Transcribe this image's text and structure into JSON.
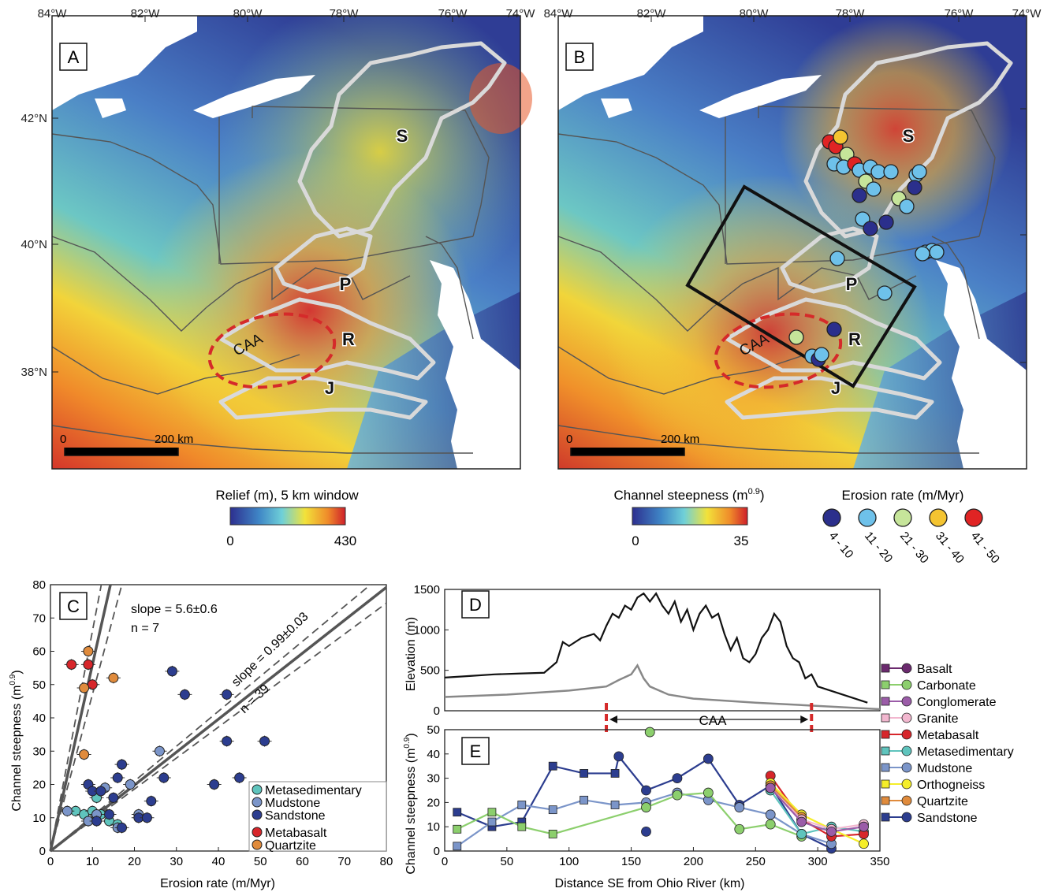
{
  "map_panels": {
    "lon_ticks": [
      "84°W",
      "82°W",
      "80°W",
      "78°W",
      "76°W",
      "74°W"
    ],
    "lat_ticks": [
      "42°N",
      "40°N",
      "38°N"
    ],
    "basin_labels": [
      "S",
      "P",
      "R",
      "J"
    ],
    "caa_label": "CAA",
    "scalebar_zero": "0",
    "scalebar_label": "200 km"
  },
  "panel_a": {
    "letter": "A",
    "colorbar_title": "Relief (m), 5 km window",
    "colorbar_min": "0",
    "colorbar_max": "430"
  },
  "panel_b": {
    "letter": "B",
    "colorbar_title": "Channel steepness (m",
    "colorbar_title_sup": "0.9",
    "colorbar_title_end": ")",
    "colorbar_min": "0",
    "colorbar_max": "35",
    "erosion_legend_title": "Erosion rate (m/Myr)",
    "erosion_classes": [
      {
        "label": "4 - 10",
        "color": "#2b2f8c"
      },
      {
        "label": "11 - 20",
        "color": "#6ec1ea"
      },
      {
        "label": "21 - 30",
        "color": "#c6e59a"
      },
      {
        "label": "31 - 40",
        "color": "#f4c431"
      },
      {
        "label": "41 - 50",
        "color": "#e02424"
      }
    ]
  },
  "panel_c": {
    "letter": "C",
    "xlabel": "Erosion rate (m/Myr)",
    "ylabel_main": "Channel steepness (m",
    "ylabel_sup": "0.9",
    "ylabel_end": ")",
    "xticks": [
      "0",
      "10",
      "20",
      "30",
      "40",
      "50",
      "60",
      "70",
      "80"
    ],
    "yticks": [
      "0",
      "10",
      "20",
      "30",
      "40",
      "50",
      "60",
      "70",
      "80"
    ],
    "fit1_slope": "slope = 5.6±0.6",
    "fit1_n": "n = 7",
    "fit2_slope": "slope = 0.99±0.03",
    "fit2_n": "n = 39",
    "legend": [
      "Metasedimentary",
      "Mudstone",
      "Sandstone",
      "Metabasalt",
      "Quartzite"
    ]
  },
  "panel_d": {
    "letter": "D",
    "ylabel": "Elevation (m)",
    "yticks": [
      "0",
      "500",
      "1000",
      "1500"
    ],
    "caa_label": "CAA"
  },
  "panel_e": {
    "letter": "E",
    "xlabel": "Distance SE from Ohio River (km)",
    "ylabel_main": "Channel steepness (m",
    "ylabel_sup": "0.9",
    "ylabel_end": ")",
    "xticks": [
      "0",
      "50",
      "100",
      "150",
      "200",
      "250",
      "300",
      "350"
    ],
    "yticks": [
      "0",
      "10",
      "20",
      "30",
      "40",
      "50"
    ]
  },
  "lithology_legend": [
    "Basalt",
    "Carbonate",
    "Conglomerate",
    "Granite",
    "Metabasalt",
    "Metasedimentary",
    "Mudstone",
    "Orthogneiss",
    "Quartzite",
    "Sandstone"
  ],
  "colors": {
    "metasedimentary": "#5fc4bd",
    "mudstone": "#7b95c9",
    "sandstone": "#2c3d8f",
    "metabasalt": "#d7262b",
    "quartzite": "#e08b3c",
    "basalt": "#6b2a6e",
    "carbonate": "#8ccf6d",
    "conglomerate": "#9b5ca8",
    "granite": "#f2b7cf",
    "orthogneiss": "#f5ee2a"
  },
  "chart_data": [
    {
      "panel": "C",
      "type": "scatter",
      "xlabel": "Erosion rate (m/Myr)",
      "ylabel": "Channel steepness (m0.9)",
      "xlim": [
        0,
        80
      ],
      "ylim": [
        0,
        80
      ],
      "fits": [
        {
          "slope": 5.6,
          "label": "slope = 5.6±0.6",
          "n": 7
        },
        {
          "slope": 0.99,
          "label": "slope = 0.99±0.03",
          "n": 39
        }
      ],
      "series": [
        {
          "name": "Metasedimentary",
          "points": [
            [
              6,
              12
            ],
            [
              8,
              11
            ],
            [
              10,
              12
            ],
            [
              11,
              16
            ],
            [
              12,
              11
            ],
            [
              14,
              9
            ],
            [
              16,
              8
            ]
          ]
        },
        {
          "name": "Mudstone",
          "points": [
            [
              4,
              12
            ],
            [
              9,
              9
            ],
            [
              11,
              11
            ],
            [
              12,
              18
            ],
            [
              13,
              19
            ],
            [
              16,
              7
            ],
            [
              19,
              20
            ],
            [
              21,
              11
            ],
            [
              26,
              30
            ]
          ]
        },
        {
          "name": "Sandstone",
          "points": [
            [
              9,
              20
            ],
            [
              10,
              18
            ],
            [
              11,
              9
            ],
            [
              12,
              18
            ],
            [
              14,
              11
            ],
            [
              15,
              16
            ],
            [
              16,
              22
            ],
            [
              17,
              26
            ],
            [
              17,
              7
            ],
            [
              21,
              10
            ],
            [
              23,
              10
            ],
            [
              24,
              15
            ],
            [
              27,
              22
            ],
            [
              29,
              54
            ],
            [
              32,
              47
            ],
            [
              39,
              20
            ],
            [
              42,
              33
            ],
            [
              42,
              47
            ],
            [
              45,
              22
            ],
            [
              51,
              33
            ]
          ]
        },
        {
          "name": "Metabasalt",
          "points": [
            [
              5,
              56
            ],
            [
              9,
              56
            ],
            [
              10,
              50
            ]
          ]
        },
        {
          "name": "Quartzite",
          "points": [
            [
              8,
              49
            ],
            [
              8,
              29
            ],
            [
              9,
              60
            ],
            [
              15,
              52
            ]
          ]
        }
      ]
    },
    {
      "panel": "D",
      "type": "line",
      "ylabel": "Elevation (m)",
      "xlim": [
        0,
        350
      ],
      "ylim": [
        0,
        1500
      ],
      "caa_range_km": [
        130,
        295
      ],
      "series": [
        {
          "name": "",
          "x": [
            0,
            20,
            40,
            60,
            80,
            90,
            95,
            100,
            110,
            120,
            125,
            130,
            135,
            140,
            145,
            150,
            155,
            160,
            165,
            170,
            175,
            180,
            185,
            190,
            195,
            200,
            205,
            210,
            215,
            220,
            225,
            230,
            235,
            240,
            245,
            250,
            255,
            260,
            265,
            270,
            275,
            280,
            285,
            290,
            295,
            300,
            310,
            320,
            330,
            340
          ],
          "y": [
            410,
            430,
            450,
            460,
            470,
            600,
            850,
            800,
            900,
            950,
            870,
            1050,
            1200,
            1150,
            1300,
            1250,
            1400,
            1450,
            1350,
            1450,
            1300,
            1200,
            1350,
            1100,
            1250,
            1000,
            1200,
            1300,
            1150,
            1200,
            950,
            750,
            900,
            650,
            600,
            700,
            900,
            1000,
            1200,
            1100,
            800,
            650,
            600,
            400,
            450,
            300,
            250,
            200,
            150,
            100
          ]
        },
        {
          "name": "",
          "x": [
            0,
            50,
            100,
            130,
            140,
            150,
            155,
            160,
            165,
            180,
            200,
            250,
            300,
            350
          ],
          "y": [
            170,
            200,
            250,
            300,
            380,
            450,
            560,
            400,
            300,
            200,
            150,
            100,
            60,
            20
          ]
        }
      ]
    },
    {
      "panel": "E",
      "type": "line",
      "xlabel": "Distance SE from Ohio River (km)",
      "ylabel": "Channel steepness (m0.9)",
      "xlim": [
        0,
        350
      ],
      "ylim": [
        0,
        50
      ],
      "series": [
        {
          "name": "Sandstone",
          "points": [
            [
              10,
              16
            ],
            [
              38,
              10
            ],
            [
              62,
              12
            ],
            [
              87,
              35
            ],
            [
              112,
              32
            ],
            [
              137,
              32
            ],
            [
              140,
              39
            ],
            [
              162,
              25
            ],
            [
              187,
              30
            ],
            [
              212,
              38
            ],
            [
              237,
              19
            ],
            [
              262,
              27
            ],
            [
              287,
              7
            ],
            [
              311,
              1
            ],
            [
              162,
              8
            ]
          ]
        },
        {
          "name": "Mudstone",
          "points": [
            [
              10,
              2
            ],
            [
              38,
              12
            ],
            [
              62,
              19
            ],
            [
              87,
              17
            ],
            [
              112,
              21
            ],
            [
              137,
              19
            ],
            [
              162,
              20
            ],
            [
              187,
              24
            ],
            [
              212,
              21
            ],
            [
              237,
              18
            ],
            [
              262,
              15
            ],
            [
              287,
              7
            ],
            [
              311,
              3
            ]
          ]
        },
        {
          "name": "Carbonate",
          "points": [
            [
              10,
              9
            ],
            [
              38,
              16
            ],
            [
              62,
              10
            ],
            [
              87,
              7
            ],
            [
              162,
              18
            ],
            [
              187,
              23
            ],
            [
              212,
              24
            ],
            [
              237,
              9
            ],
            [
              262,
              11
            ],
            [
              287,
              6
            ],
            [
              165,
              49
            ]
          ]
        },
        {
          "name": "Metasedimentary",
          "points": [
            [
              262,
              25
            ],
            [
              287,
              7
            ],
            [
              311,
              10
            ],
            [
              337,
              8
            ]
          ]
        },
        {
          "name": "Metabasalt",
          "points": [
            [
              262,
              31
            ],
            [
              287,
              13
            ],
            [
              311,
              6
            ],
            [
              337,
              7
            ]
          ]
        },
        {
          "name": "Orthogneiss",
          "points": [
            [
              262,
              28
            ],
            [
              287,
              15
            ],
            [
              311,
              9
            ],
            [
              337,
              3
            ]
          ]
        },
        {
          "name": "Quartzite",
          "points": [
            [
              262,
              27
            ],
            [
              287,
              14
            ]
          ]
        },
        {
          "name": "Granite",
          "points": [
            [
              262,
              26
            ],
            [
              287,
              13
            ],
            [
              311,
              9
            ],
            [
              337,
              11
            ]
          ]
        },
        {
          "name": "Conglomerate",
          "points": [
            [
              262,
              26
            ],
            [
              287,
              12
            ],
            [
              311,
              8
            ],
            [
              337,
              10
            ]
          ]
        }
      ]
    }
  ]
}
